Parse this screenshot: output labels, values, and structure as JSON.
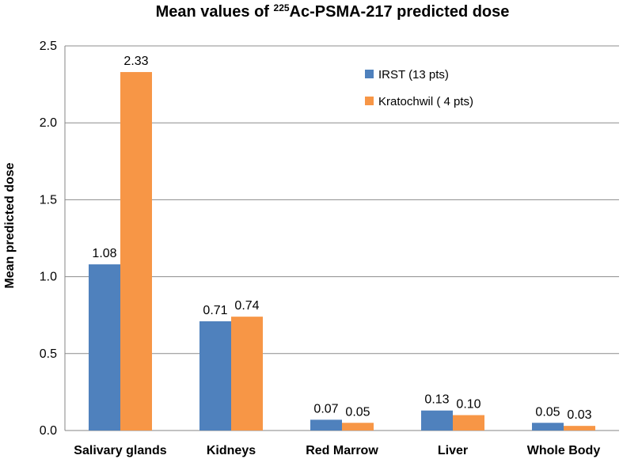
{
  "chart_data": {
    "type": "bar",
    "title": {
      "prefix": "Mean values of ",
      "superscript": "225",
      "suffix": "Ac-PSMA-217 predicted dose"
    },
    "xlabel": "",
    "ylabel": "Mean predicted dose",
    "ylim": [
      0,
      2.5
    ],
    "yticks": [
      "0.0",
      "0.5",
      "1.0",
      "1.5",
      "2.0",
      "2.5"
    ],
    "ytick_values": [
      0,
      0.5,
      1.0,
      1.5,
      2.0,
      2.5
    ],
    "grid": true,
    "legend_position": "top-right",
    "categories": [
      "Salivary glands",
      "Kidneys",
      "Red Marrow",
      "Liver",
      "Whole Body"
    ],
    "series": [
      {
        "name": "IRST (13 pts)",
        "color": "#4F81BD",
        "values": [
          1.08,
          0.71,
          0.07,
          0.13,
          0.05
        ],
        "labels": [
          "1.08",
          "0.71",
          "0.07",
          "0.13",
          "0.05"
        ]
      },
      {
        "name": "Kratochwil ( 4 pts)",
        "color": "#F79646",
        "values": [
          2.33,
          0.74,
          0.05,
          0.1,
          0.03
        ],
        "labels": [
          "2.33",
          "0.74",
          "0.05",
          "0.10",
          "0.03"
        ]
      }
    ]
  }
}
